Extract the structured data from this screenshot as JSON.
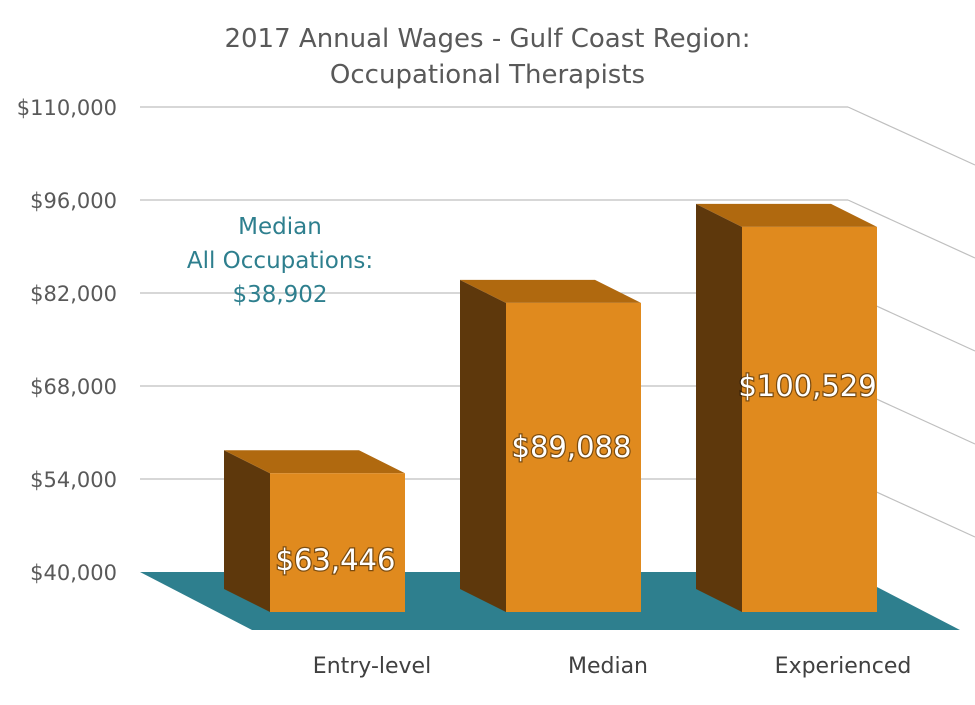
{
  "chart_data": {
    "type": "bar",
    "title": "2017 Annual Wages - Gulf Coast Region:",
    "subtitle": "Occupational Therapists",
    "categories": [
      "Entry-level",
      "Median",
      "Experienced"
    ],
    "values": [
      63446,
      89088,
      100529
    ],
    "value_labels": [
      "$63,446",
      "$89,088",
      "$100,529"
    ],
    "y_ticks": [
      40000,
      54000,
      68000,
      82000,
      96000,
      110000
    ],
    "y_tick_labels": [
      "$40,000",
      "$54,000",
      "$68,000",
      "$82,000",
      "$96,000",
      "$110,000"
    ],
    "ylim": [
      40000,
      110000
    ],
    "grid": true,
    "bar_color": "#E08A1E",
    "bar_side_color": "#5E380C",
    "bar_top_color": "#B0690F",
    "floor_color": "#2E7F8E",
    "annotation": {
      "line1": "Median",
      "line2": "All Occupations:",
      "line3": "$38,902"
    }
  }
}
